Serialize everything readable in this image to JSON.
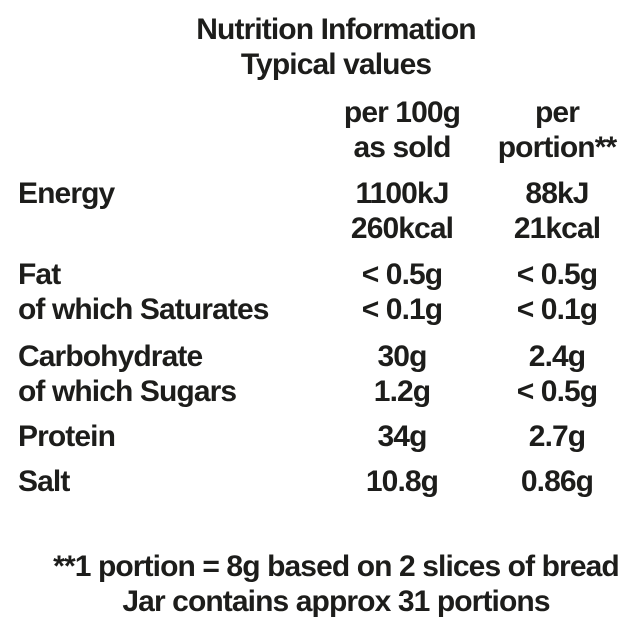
{
  "panel": {
    "title": "Nutrition Information",
    "subtitle": "Typical values"
  },
  "table": {
    "header": {
      "per_100g": [
        "per 100g",
        "as sold"
      ],
      "per_portion": [
        "per",
        "portion**"
      ]
    },
    "rows": [
      {
        "label": "Energy",
        "per_100g": [
          "1100kJ",
          "260kcal"
        ],
        "per_portion": [
          "88kJ",
          "21kcal"
        ]
      },
      {
        "label": "Fat",
        "per_100g": [
          "< 0.5g"
        ],
        "per_portion": [
          "< 0.5g"
        ]
      },
      {
        "label": "of which Saturates",
        "per_100g": [
          "< 0.1g"
        ],
        "per_portion": [
          "< 0.1g"
        ]
      },
      {
        "label": "Carbohydrate",
        "per_100g": [
          "30g"
        ],
        "per_portion": [
          "2.4g"
        ]
      },
      {
        "label": "of which Sugars",
        "per_100g": [
          "1.2g"
        ],
        "per_portion": [
          "< 0.5g"
        ]
      },
      {
        "label": "Protein",
        "per_100g": [
          "34g"
        ],
        "per_portion": [
          "2.7g"
        ]
      },
      {
        "label": "Salt",
        "per_100g": [
          "10.8g"
        ],
        "per_portion": [
          "0.86g"
        ]
      }
    ]
  },
  "footnotes": [
    "**1 portion = 8g based on 2 slices of bread",
    "Jar contains approx 31 portions"
  ],
  "colors": {
    "text": "#1d1d1b",
    "background": "#ffffff"
  }
}
